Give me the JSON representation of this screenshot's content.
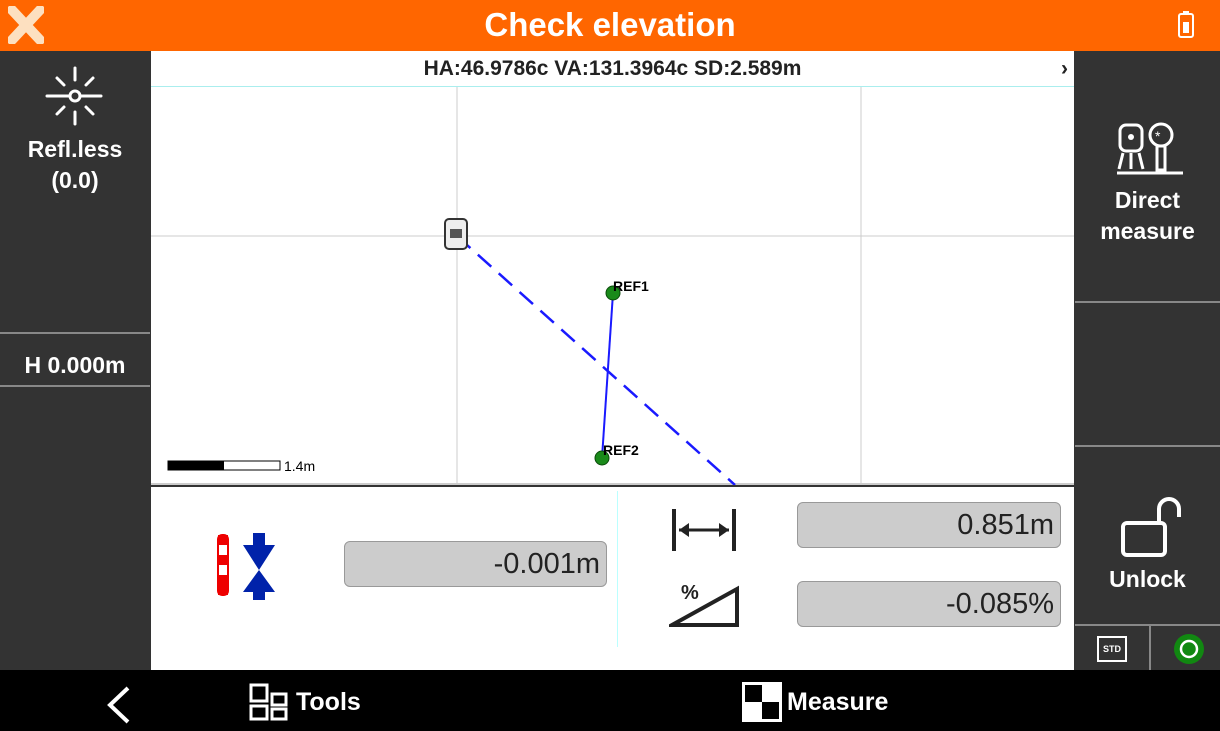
{
  "header": {
    "title": "Check elevation",
    "logo_icon": "x-logo-icon",
    "battery_icon": "battery-icon",
    "accent": "#ff6600"
  },
  "left_panel": {
    "mode_label": "Refl.less",
    "mode_value": "(0.0)",
    "height_label": "H 0.000m"
  },
  "map": {
    "info": "HA:46.9786c  VA:131.3964c  SD:2.589m",
    "scale_label": "1.4m",
    "points": [
      {
        "name": "REF1"
      },
      {
        "name": "REF2"
      }
    ]
  },
  "results": {
    "height_diff": "-0.001m",
    "distance": "0.851m",
    "slope": "-0.085%"
  },
  "right_panel": {
    "direct_measure": "Direct measure",
    "unlock": "Unlock",
    "std": "STD"
  },
  "nav": {
    "tools": "Tools",
    "measure": "Measure"
  }
}
